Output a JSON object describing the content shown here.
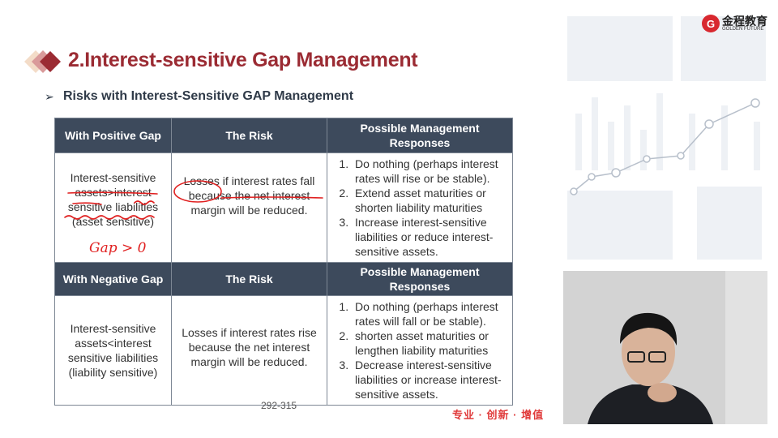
{
  "title": "2.Interest-sensitive Gap Management",
  "subtitle_bullet": "➢",
  "subtitle": "Risks with Interest-Sensitive GAP Management",
  "colors": {
    "title": "#9b2b33",
    "table_header": "#3d4a5c",
    "annotation": "#e02020",
    "slogan": "#e03a3a"
  },
  "logo": {
    "mark": "G",
    "cn": "金程教育",
    "en": "GOLDEN FUTURE"
  },
  "table": {
    "sections": [
      {
        "headers": [
          "With Positive Gap",
          "The Risk",
          "Possible Management Responses"
        ],
        "condition": "Interest-sensitive assets>interest sensitive liabilities (asset sensitive)",
        "risk": "Losses if interest rates fall because the net interest margin will be reduced.",
        "responses": [
          "Do nothing (perhaps interest rates will rise or be stable).",
          "Extend asset  maturities or shorten liability maturities",
          "Increase interest-sensitive liabilities or reduce interest-sensitive assets."
        ]
      },
      {
        "headers": [
          "With Negative Gap",
          "The Risk",
          "Possible Management Responses"
        ],
        "condition": "Interest-sensitive assets<interest sensitive liabilities (liability sensitive)",
        "risk": "Losses if interest rates rise because the net interest margin will be reduced.",
        "responses": [
          "Do nothing (perhaps interest rates will fall or be stable).",
          "shorten asset  maturities or lengthen liability maturities",
          "Decrease interest-sensitive liabilities or increase interest-sensitive assets."
        ]
      }
    ]
  },
  "annotation": "Gap > 0",
  "page_ref": "292-315",
  "slogan": "专业 · 创新 · 增值"
}
